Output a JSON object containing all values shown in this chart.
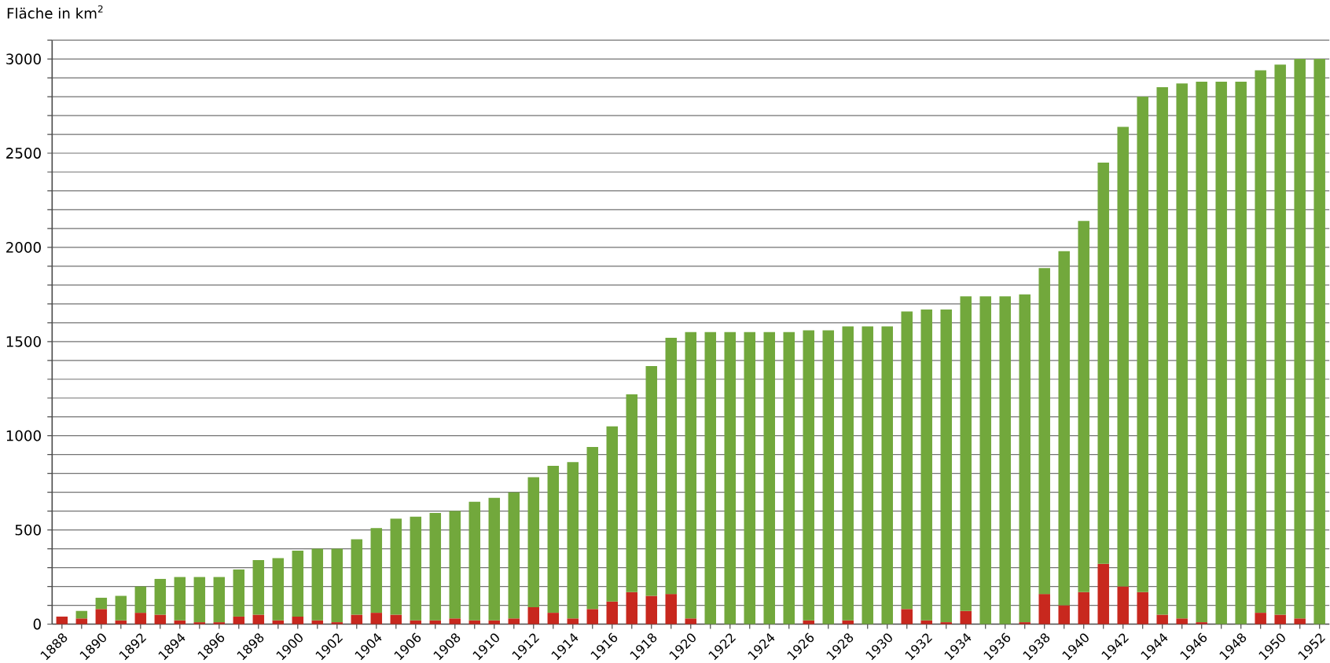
{
  "chart_data": {
    "type": "bar",
    "ylabel": "Fläche in km$^{2}$",
    "categories": [
      "1888",
      null,
      "1890",
      null,
      "1892",
      null,
      "1894",
      null,
      "1896",
      null,
      "1898",
      null,
      "1900",
      null,
      "1902",
      null,
      "1904",
      null,
      "1906",
      null,
      "1908",
      null,
      "1910",
      null,
      "1912",
      null,
      "1914",
      null,
      "1916",
      null,
      "1918",
      null,
      "1920",
      null,
      "1922",
      null,
      "1924",
      null,
      "1926",
      null,
      "1928",
      null,
      "1930",
      null,
      "1932",
      null,
      "1934",
      null,
      "1936",
      null,
      "1938",
      null,
      "1940",
      null,
      "1942",
      null,
      "1944",
      null,
      "1946",
      null,
      "1948",
      null,
      "1950",
      null,
      "1952"
    ],
    "stacked": true,
    "series": [
      {
        "color": "#c8281e",
        "values": [
          40,
          30,
          80,
          20,
          60,
          50,
          20,
          10,
          10,
          40,
          50,
          20,
          40,
          20,
          10,
          50,
          60,
          50,
          20,
          20,
          30,
          20,
          20,
          30,
          90,
          60,
          30,
          80,
          120,
          170,
          150,
          160,
          30,
          null,
          null,
          null,
          null,
          null,
          20,
          null,
          20,
          null,
          null,
          80,
          20,
          10,
          70,
          null,
          null,
          10,
          160,
          100,
          170,
          320,
          200,
          170,
          50,
          30,
          10,
          null,
          null,
          60,
          50,
          30,
          null
        ]
      },
      {
        "color": "#72a83c",
        "values": [
          null,
          40,
          60,
          130,
          140,
          190,
          230,
          240,
          240,
          250,
          290,
          330,
          350,
          380,
          390,
          400,
          450,
          510,
          550,
          570,
          570,
          630,
          650,
          670,
          690,
          780,
          830,
          860,
          930,
          1050,
          1220,
          1360,
          1520,
          1550,
          1550,
          1550,
          1550,
          1550,
          1540,
          1560,
          1560,
          1580,
          1580,
          1580,
          1650,
          1660,
          1670,
          1740,
          1740,
          1740,
          1730,
          1880,
          1970,
          2130,
          2440,
          2630,
          2800,
          2840,
          2870,
          2880,
          2880,
          2880,
          2920,
          2970,
          3000
        ]
      }
    ],
    "ylim": [
      0,
      3100
    ],
    "yticks": [
      0,
      {
        "value": 100,
        "label": null
      },
      {
        "value": 200,
        "label": null
      },
      {
        "value": 300,
        "label": null
      },
      {
        "value": 400,
        "label": null
      },
      500,
      {
        "value": 600,
        "label": null
      },
      {
        "value": 700,
        "label": null
      },
      {
        "value": 800,
        "label": null
      },
      {
        "value": 900,
        "label": null
      },
      1000,
      {
        "value": 1100,
        "label": null
      },
      {
        "value": 1200,
        "label": null
      },
      {
        "value": 1300,
        "label": null
      },
      {
        "value": 1400,
        "label": null
      },
      1500,
      {
        "value": 1600,
        "label": null
      },
      {
        "value": 1700,
        "label": null
      },
      {
        "value": 1800,
        "label": null
      },
      {
        "value": 1900,
        "label": null
      },
      2000,
      {
        "value": 2100,
        "label": null
      },
      {
        "value": 2200,
        "label": null
      },
      {
        "value": 2300,
        "label": null
      },
      {
        "value": 2400,
        "label": null
      },
      2500,
      {
        "value": 2600,
        "label": null
      },
      {
        "value": 2700,
        "label": null
      },
      {
        "value": 2800,
        "label": null
      },
      {
        "value": 2900,
        "label": null
      },
      3000,
      {
        "value": 3100,
        "label": null
      }
    ],
    "grid": "y"
  }
}
